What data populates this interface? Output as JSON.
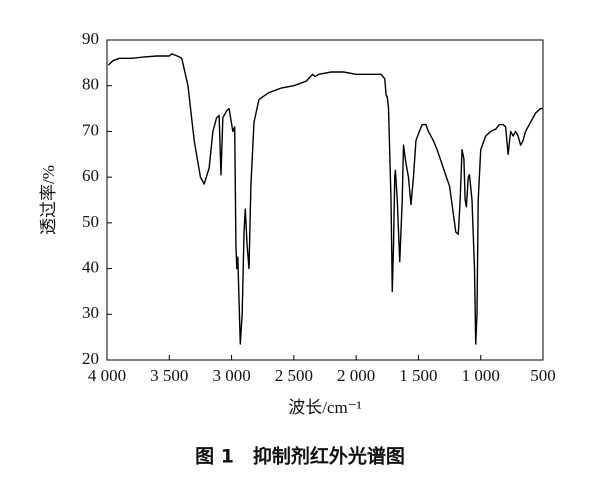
{
  "chart_data": {
    "type": "line",
    "title": "图 1　抑制剂红外光谱图",
    "xlabel": "波长/cm⁻¹",
    "ylabel": "透过率/%",
    "x": [
      3990,
      3950,
      3900,
      3800,
      3700,
      3600,
      3500,
      3480,
      3420,
      3400,
      3350,
      3300,
      3250,
      3220,
      3180,
      3150,
      3120,
      3100,
      3085,
      3070,
      3040,
      3020,
      2990,
      2975,
      2965,
      2958,
      2950,
      2930,
      2915,
      2900,
      2890,
      2875,
      2860,
      2845,
      2820,
      2780,
      2700,
      2600,
      2500,
      2400,
      2350,
      2330,
      2300,
      2200,
      2100,
      2000,
      1900,
      1800,
      1770,
      1760,
      1750,
      1740,
      1720,
      1710,
      1700,
      1690,
      1685,
      1670,
      1650,
      1630,
      1620,
      1600,
      1580,
      1560,
      1540,
      1520,
      1500,
      1470,
      1440,
      1420,
      1380,
      1350,
      1300,
      1250,
      1220,
      1200,
      1180,
      1165,
      1150,
      1135,
      1125,
      1115,
      1100,
      1090,
      1070,
      1050,
      1040,
      1030,
      1020,
      1000,
      960,
      920,
      880,
      850,
      820,
      800,
      780,
      760,
      740,
      720,
      700,
      680,
      660,
      640,
      600,
      560,
      520,
      500
    ],
    "values": [
      84.5,
      85.5,
      86,
      86,
      86.3,
      86.5,
      86.5,
      87,
      86.3,
      86,
      80,
      68,
      60,
      58.5,
      62,
      70,
      73,
      73.5,
      60.5,
      73,
      74.5,
      75,
      70,
      71,
      45,
      40,
      42.5,
      23.5,
      30,
      48,
      53,
      45,
      40,
      58,
      72,
      77,
      78.5,
      79.5,
      80,
      81,
      82.5,
      82,
      82.5,
      83,
      83,
      82.5,
      82.5,
      82.5,
      81.5,
      78,
      77.5,
      75,
      55,
      35,
      45,
      60,
      61.5,
      55,
      41.5,
      55,
      67,
      63,
      60,
      54,
      60,
      68,
      69.5,
      71.5,
      71.5,
      70,
      68,
      66,
      62,
      58,
      52,
      48,
      47.5,
      55,
      66,
      64,
      55,
      53.5,
      60,
      60.5,
      55,
      40,
      23.5,
      30,
      55,
      66,
      69,
      70,
      70.5,
      71.5,
      71.5,
      71,
      65,
      70,
      69,
      70,
      69,
      67,
      68,
      70,
      72,
      74,
      75,
      75
    ],
    "color": "#000000",
    "xlim": [
      4000,
      500
    ],
    "xticks": [
      {
        "value": 4000,
        "label": "4 000"
      },
      {
        "value": 3500,
        "label": "3 500"
      },
      {
        "value": 3000,
        "label": "3 000"
      },
      {
        "value": 2500,
        "label": "2 500"
      },
      {
        "value": 2000,
        "label": "2 000"
      },
      {
        "value": 1500,
        "label": "1 500"
      },
      {
        "value": 1000,
        "label": "1 000"
      },
      500
    ],
    "ylim": [
      20,
      90
    ],
    "yticks": [
      20,
      30,
      40,
      50,
      60,
      70,
      80,
      90
    ]
  }
}
